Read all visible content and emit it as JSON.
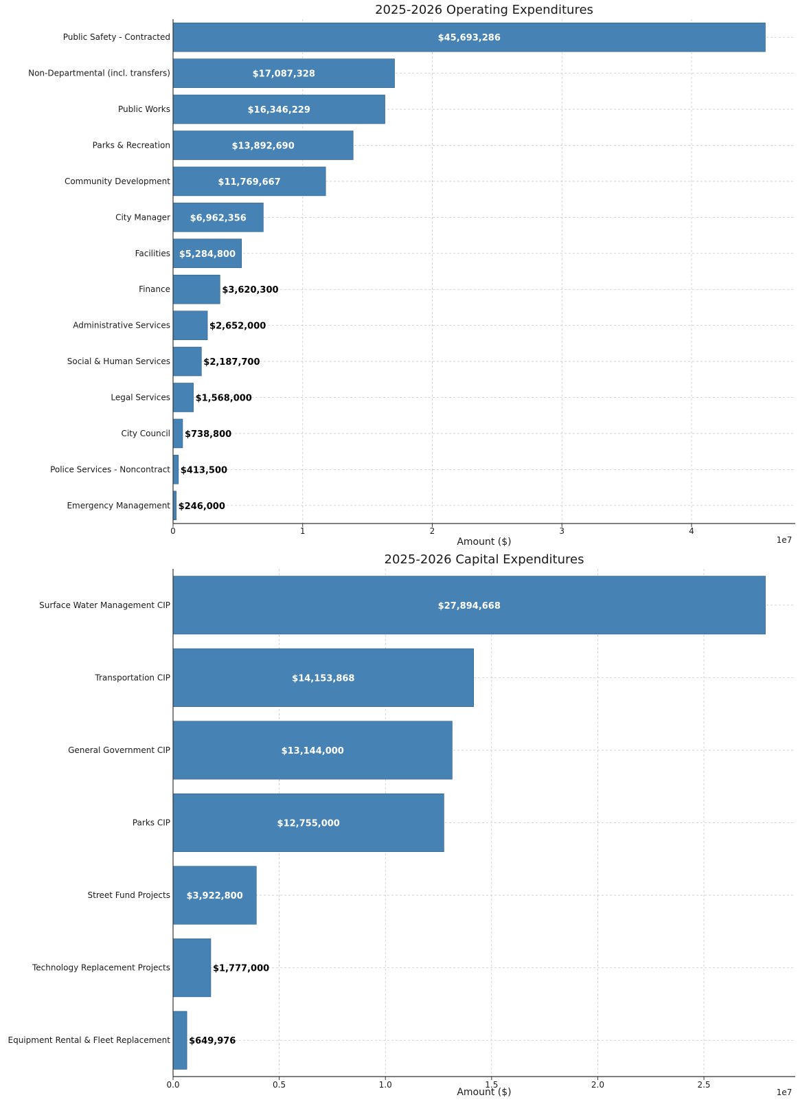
{
  "chart_data": [
    {
      "type": "bar",
      "orientation": "horizontal",
      "title": "2025-2026 Operating Expenditures",
      "xlabel": "Amount ($)",
      "ylabel": "",
      "offset_label": "1e7",
      "xlim": [
        0,
        48000000
      ],
      "xticks": [
        0,
        10000000,
        20000000,
        30000000,
        40000000
      ],
      "xtick_labels": [
        "0",
        "1",
        "2",
        "3",
        "4"
      ],
      "grid": true,
      "bar_color": "#4682b4",
      "categories": [
        "Public Safety - Contracted",
        "Non-Departmental (incl. transfers)",
        "Public Works",
        "Parks & Recreation",
        "Community Development",
        "City Manager",
        "Facilities",
        "Finance",
        "Administrative Services",
        "Social & Human Services",
        "Legal Services",
        "City Council",
        "Police Services - Noncontract",
        "Emergency Management"
      ],
      "values": [
        45693286,
        17087328,
        16346229,
        13892690,
        11769667,
        6962356,
        5284800,
        3620300,
        2652000,
        2187700,
        1568000,
        738800,
        413500,
        246000
      ],
      "value_labels": [
        "$45,693,286",
        "$17,087,328",
        "$16,346,229",
        "$13,892,690",
        "$11,769,667",
        "$6,962,356",
        "$5,284,800",
        "$3,620,300",
        "$2,652,000",
        "$2,187,700",
        "$1,568,000",
        "$738,800",
        "$413,500",
        "$246,000"
      ]
    },
    {
      "type": "bar",
      "orientation": "horizontal",
      "title": "2025-2026 Capital Expenditures",
      "xlabel": "Amount ($)",
      "ylabel": "",
      "offset_label": "1e7",
      "xlim": [
        0,
        29300000
      ],
      "xticks": [
        0,
        5000000,
        10000000,
        15000000,
        20000000,
        25000000
      ],
      "xtick_labels": [
        "0.0",
        "0.5",
        "1.0",
        "1.5",
        "2.0",
        "2.5"
      ],
      "grid": true,
      "bar_color": "#4682b4",
      "categories": [
        "Surface Water Management CIP",
        "Transportation CIP",
        "General Government CIP",
        "Parks CIP",
        "Street Fund Projects",
        "Technology Replacement Projects",
        "Equipment Rental & Fleet Replacement"
      ],
      "values": [
        27894668,
        14153868,
        13144000,
        12755000,
        3922800,
        1777000,
        649976
      ],
      "value_labels": [
        "$27,894,668",
        "$14,153,868",
        "$13,144,000",
        "$12,755,000",
        "$3,922,800",
        "$1,777,000",
        "$649,976"
      ]
    }
  ]
}
